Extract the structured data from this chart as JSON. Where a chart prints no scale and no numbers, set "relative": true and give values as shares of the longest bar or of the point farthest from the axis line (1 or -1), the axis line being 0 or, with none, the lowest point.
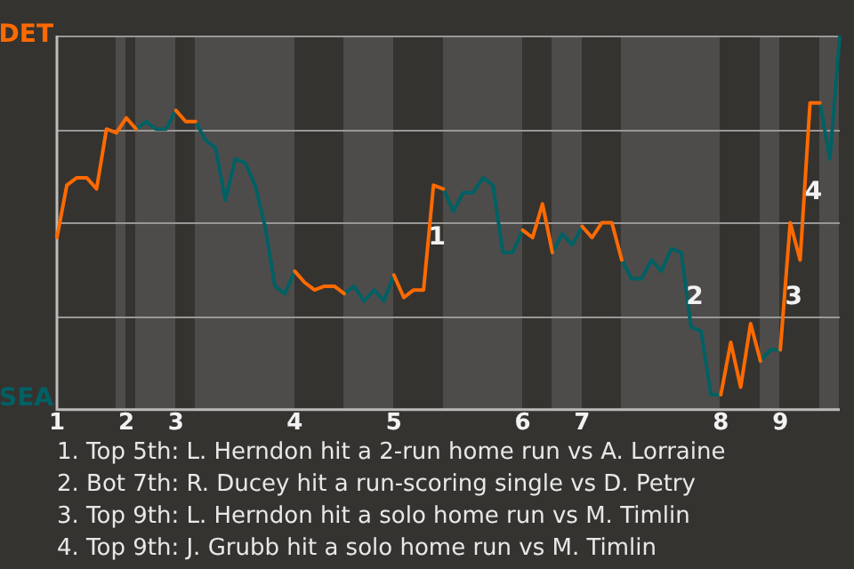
{
  "chart_data": {
    "type": "line",
    "relative": true,
    "categories": [
      "1",
      null,
      null,
      null,
      null,
      null,
      null,
      "2",
      null,
      null,
      null,
      null,
      "3",
      null,
      null,
      null,
      null,
      null,
      null,
      null,
      null,
      null,
      null,
      null,
      "4",
      null,
      null,
      null,
      null,
      null,
      null,
      null,
      null,
      null,
      "5",
      null,
      null,
      null,
      null,
      null,
      null,
      null,
      null,
      null,
      null,
      null,
      null,
      "6",
      null,
      null,
      null,
      null,
      null,
      "7",
      null,
      null,
      null,
      null,
      null,
      null,
      null,
      null,
      null,
      null,
      null,
      null,
      null,
      "8",
      null,
      null,
      null,
      null,
      null,
      "9",
      null,
      null,
      null,
      null,
      null,
      null
    ],
    "series": [
      {
        "color": "#ff6a00",
        "values": [
          0.46,
          0.6,
          0.62,
          0.62,
          0.59,
          0.75,
          0.74,
          0.78,
          0.75,
          null,
          null,
          null,
          0.8,
          0.77,
          0.77,
          null,
          null,
          null,
          null,
          null,
          null,
          null,
          null,
          null,
          0.37,
          0.34,
          0.32,
          0.33,
          0.33,
          0.31,
          null,
          null,
          null,
          null,
          0.36,
          0.3,
          0.32,
          0.32,
          0.6,
          0.59,
          null,
          null,
          null,
          null,
          null,
          null,
          null,
          0.48,
          0.46,
          0.55,
          0.42,
          null,
          null,
          0.49,
          0.46,
          0.5,
          0.5,
          0.4,
          null,
          null,
          null,
          null,
          null,
          null,
          null,
          null,
          null,
          0.04,
          0.18,
          0.06,
          0.23,
          0.13,
          null,
          0.16,
          0.5,
          0.4,
          0.82,
          0.82,
          null,
          null
        ]
      },
      {
        "color": "#006064",
        "values": [
          null,
          null,
          null,
          null,
          null,
          null,
          null,
          null,
          0.75,
          0.77,
          0.75,
          0.75,
          0.8,
          null,
          0.77,
          0.72,
          0.7,
          0.56,
          0.67,
          0.66,
          0.6,
          0.49,
          0.33,
          0.31,
          0.37,
          null,
          null,
          null,
          null,
          0.31,
          0.33,
          0.29,
          0.32,
          0.29,
          0.36,
          null,
          null,
          null,
          null,
          0.59,
          0.53,
          0.58,
          0.58,
          0.62,
          0.6,
          0.42,
          0.42,
          0.48,
          null,
          null,
          0.42,
          0.47,
          0.44,
          0.49,
          null,
          null,
          null,
          0.4,
          0.35,
          0.35,
          0.4,
          0.37,
          0.43,
          0.42,
          0.22,
          0.21,
          0.04,
          0.04,
          null,
          null,
          null,
          0.13,
          0.16,
          0.16,
          null,
          null,
          null,
          0.82,
          0.67,
          1.0
        ]
      }
    ],
    "grid": "y",
    "legend": false,
    "marker": "none",
    "line_style": "solid",
    "annotations": [
      "DET",
      "SEA",
      "1",
      "2",
      "3",
      "4",
      "1. Top 5th: L. Herndon hit a 2-run home run vs A. Lorraine",
      "2. Bot 7th: R. Ducey hit a run-scoring single vs D. Petry",
      "3. Top 9th: L. Herndon hit a solo home run vs M. Timlin",
      "4. Top 9th: J. Grubb hit a solo home run vs M. Timlin"
    ]
  }
}
